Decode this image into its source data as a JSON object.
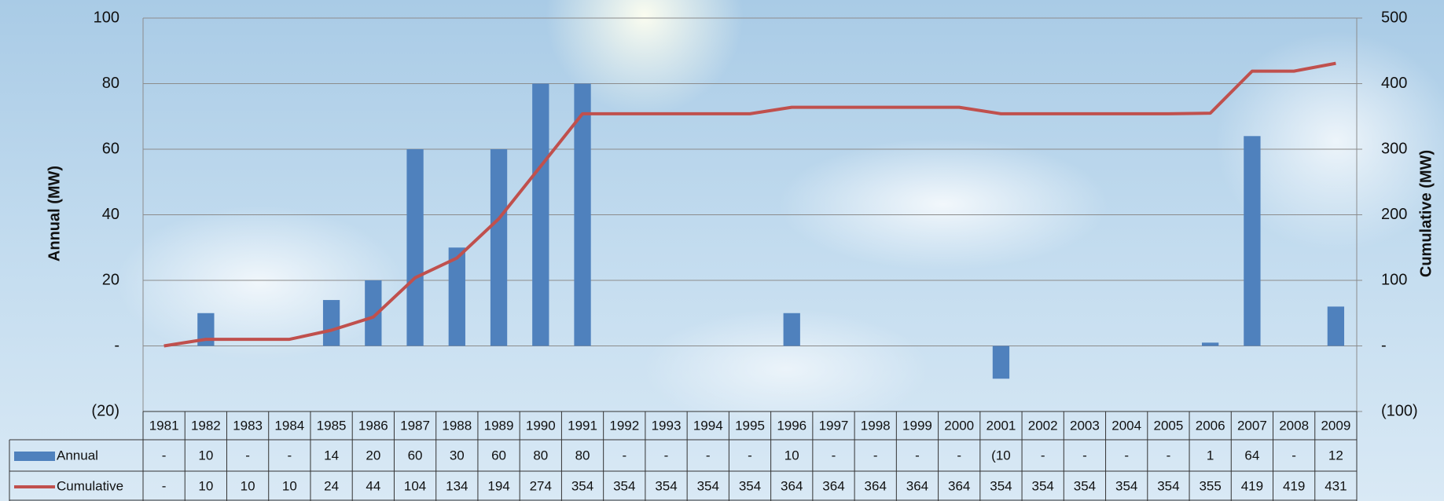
{
  "chart_data": {
    "type": "bar-line",
    "y_label": "Annual (MW)",
    "y2_label": "Cumulative (MW)",
    "categories": [
      "1981",
      "1982",
      "1983",
      "1984",
      "1985",
      "1986",
      "1987",
      "1988",
      "1989",
      "1990",
      "1991",
      "1992",
      "1993",
      "1994",
      "1995",
      "1996",
      "1997",
      "1998",
      "1999",
      "2000",
      "2001",
      "2002",
      "2003",
      "2004",
      "2005",
      "2006",
      "2007",
      "2008",
      "2009"
    ],
    "series": [
      {
        "name": "Annual",
        "color": "#4f81bd",
        "kind": "bar",
        "values": [
          0,
          10,
          0,
          0,
          14,
          20,
          60,
          30,
          60,
          80,
          80,
          0,
          0,
          0,
          0,
          10,
          0,
          0,
          0,
          0,
          -10,
          0,
          0,
          0,
          0,
          1,
          64,
          0,
          12
        ],
        "value_labels": [
          "-",
          "10",
          "-",
          "-",
          "14",
          "20",
          "60",
          "30",
          "60",
          "80",
          "80",
          "-",
          "-",
          "-",
          "-",
          "10",
          "-",
          "-",
          "-",
          "-",
          "(10",
          "-",
          "-",
          "-",
          "-",
          "1",
          "64",
          "-",
          "12"
        ]
      },
      {
        "name": "Cumulative",
        "color": "#c0504d",
        "kind": "line",
        "axis": "y2",
        "values": [
          0,
          10,
          10,
          10,
          24,
          44,
          104,
          134,
          194,
          274,
          354,
          354,
          354,
          354,
          354,
          364,
          364,
          364,
          364,
          364,
          354,
          354,
          354,
          354,
          354,
          355,
          419,
          419,
          431
        ],
        "value_labels": [
          "-",
          "10",
          "10",
          "10",
          "24",
          "44",
          "104",
          "134",
          "194",
          "274",
          "354",
          "354",
          "354",
          "354",
          "354",
          "364",
          "364",
          "364",
          "364",
          "364",
          "354",
          "354",
          "354",
          "354",
          "354",
          "355",
          "419",
          "419",
          "431"
        ]
      }
    ],
    "ylim": [
      -20,
      100
    ],
    "yticks": [
      {
        "value": -20,
        "label": "(20)"
      },
      {
        "value": 0,
        "label": "-"
      },
      20,
      40,
      60,
      80,
      100
    ],
    "y2lim": [
      -100,
      500
    ],
    "y2ticks": [
      {
        "value": -100,
        "label": "(100)"
      },
      {
        "value": 0,
        "label": "-"
      },
      100,
      200,
      300,
      400,
      500
    ],
    "grid": true
  }
}
